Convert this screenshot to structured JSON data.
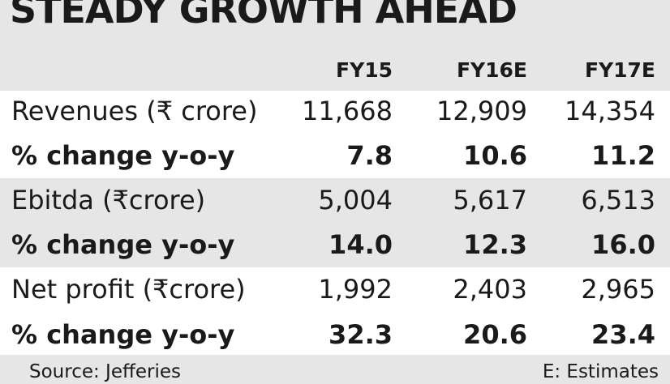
{
  "chart_data": {
    "type": "table",
    "title": "STEADY GROWTH AHEAD",
    "columns": [
      "FY15",
      "FY16E",
      "FY17E"
    ],
    "rows": [
      {
        "label": "Revenues (₹ crore)",
        "values": [
          "11,668",
          "12,909",
          "14,354"
        ],
        "bold": false
      },
      {
        "label": "% change  y-o-y",
        "values": [
          "7.8",
          "10.6",
          "11.2"
        ],
        "bold": true
      },
      {
        "label": "Ebitda (₹crore)",
        "values": [
          "5,004",
          "5,617",
          "6,513"
        ],
        "bold": false
      },
      {
        "label": "% change  y-o-y",
        "values": [
          "14.0",
          "12.3",
          "16.0"
        ],
        "bold": true
      },
      {
        "label": "Net profit (₹crore)",
        "values": [
          "1,992",
          "2,403",
          "2,965"
        ],
        "bold": false
      },
      {
        "label": "% change  y-o-y",
        "values": [
          "32.3",
          "20.6",
          "23.4"
        ],
        "bold": true
      }
    ],
    "source": "Source: Jefferies",
    "note": "E: Estimates",
    "colors": {
      "background": "#e6e6e6",
      "band": "#ffffff",
      "text": "#1a1a1a"
    }
  }
}
